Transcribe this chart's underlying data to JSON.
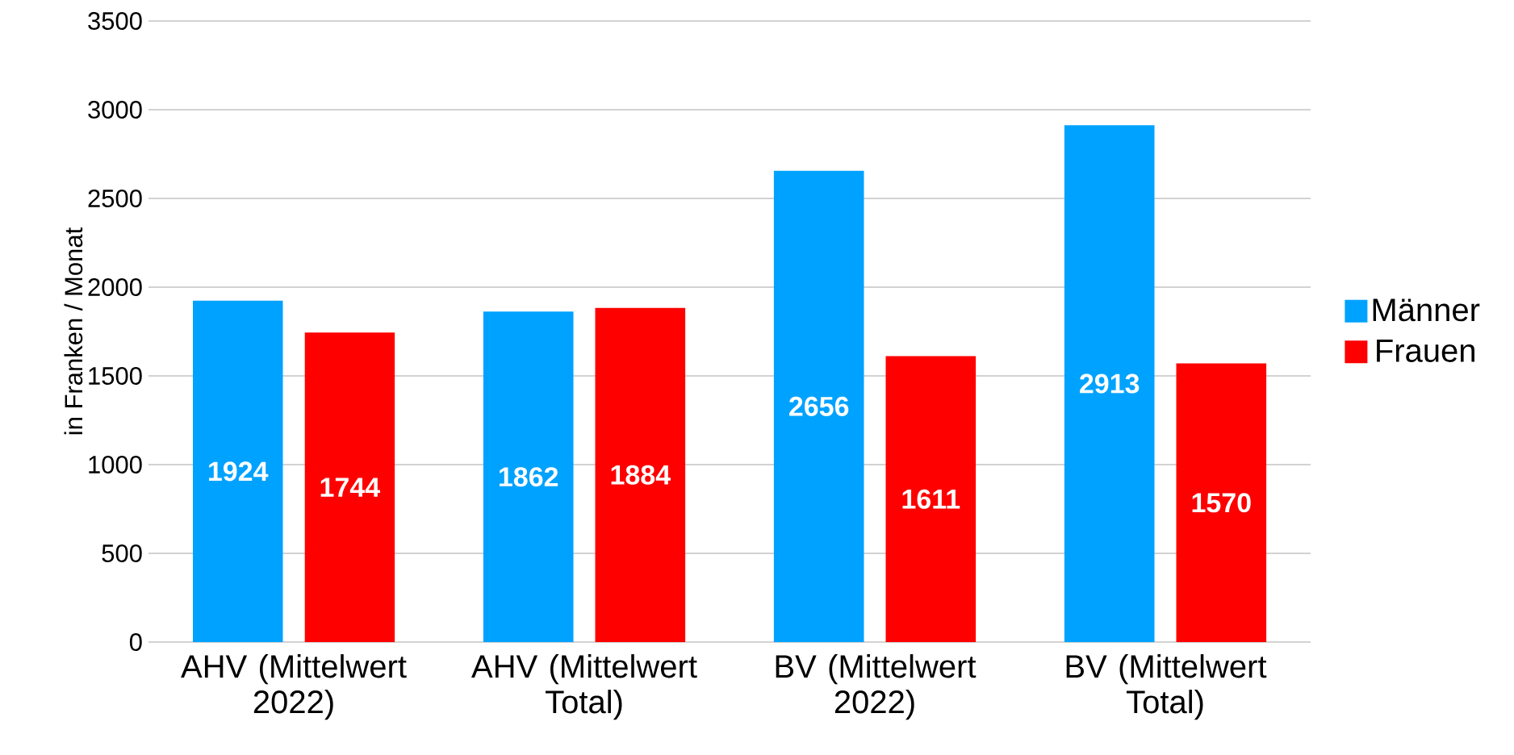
{
  "chart_data": {
    "type": "bar",
    "ylabel": "in Franken / Monat",
    "categories": [
      "AHV (Mittelwert 2022)",
      "AHV (Mittelwert Total)",
      "BV (Mittelwert 2022)",
      "BV (Mittelwert Total)"
    ],
    "series": [
      {
        "name": "Männer",
        "color": "#00a2ff",
        "values": [
          1924,
          1862,
          2656,
          2913
        ]
      },
      {
        "name": "Frauen",
        "color": "#ff0000",
        "values": [
          1744,
          1884,
          1611,
          1570
        ]
      }
    ],
    "ylim": [
      0,
      3500
    ],
    "yticks": [
      0,
      500,
      1000,
      1500,
      2000,
      2500,
      3000,
      3500
    ],
    "grid": "y",
    "legend": "right",
    "data_labels": true
  }
}
